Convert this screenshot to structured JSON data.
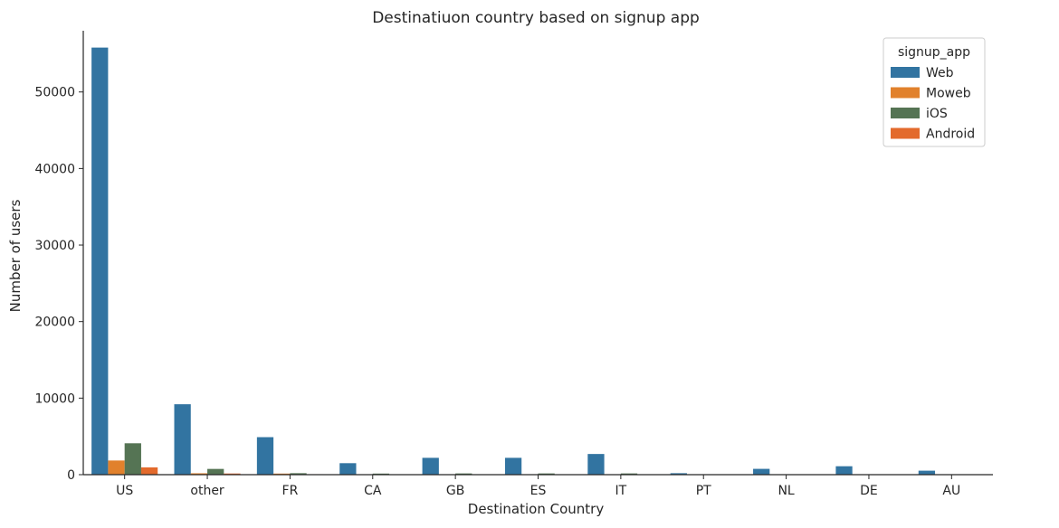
{
  "chart_data": {
    "type": "bar",
    "title": "Destinatiuon country based on signup app",
    "xlabel": "Destination Country",
    "ylabel": "Number of users",
    "categories": [
      "US",
      "other",
      "FR",
      "CA",
      "GB",
      "ES",
      "IT",
      "PT",
      "NL",
      "DE",
      "AU"
    ],
    "ylim": [
      0,
      58000
    ],
    "yticks": [
      0,
      10000,
      20000,
      30000,
      40000,
      50000
    ],
    "grid": false,
    "legend": {
      "title": "signup_app",
      "placement": "top-right"
    },
    "series": [
      {
        "name": "Web",
        "color": "#3274a1",
        "values": [
          55800,
          9200,
          4900,
          1500,
          2200,
          2200,
          2700,
          190,
          760,
          1100,
          520
        ]
      },
      {
        "name": "Moweb",
        "color": "#e1812c",
        "values": [
          1850,
          180,
          140,
          40,
          40,
          40,
          50,
          5,
          10,
          10,
          10
        ]
      },
      {
        "name": "iOS",
        "color": "#557454",
        "values": [
          4100,
          750,
          190,
          140,
          160,
          160,
          160,
          10,
          30,
          20,
          20
        ]
      },
      {
        "name": "Android",
        "color": "#e36a2c",
        "values": [
          950,
          150,
          60,
          20,
          30,
          30,
          30,
          3,
          10,
          5,
          5
        ]
      }
    ]
  }
}
